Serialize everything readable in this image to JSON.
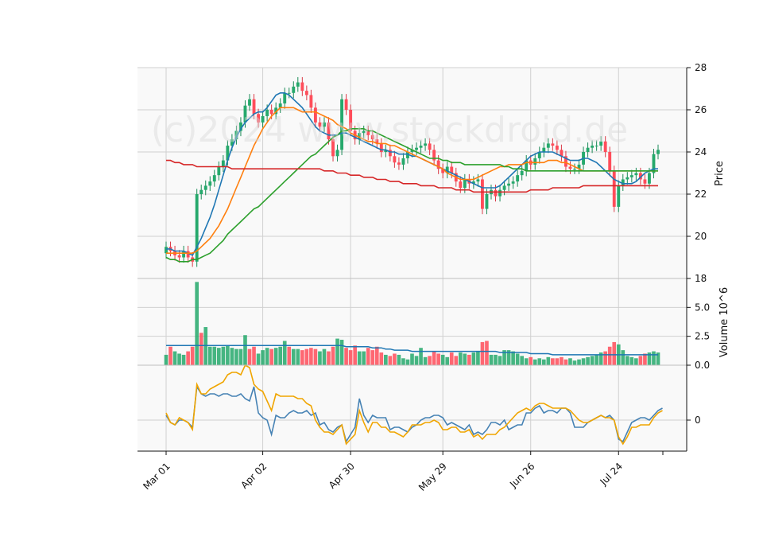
{
  "chart_data": {
    "type": "candlestick",
    "watermark": "(c)2024 www.stockdroid.de",
    "x_tick_labels": [
      "Mar 01",
      "Apr 02",
      "Apr 30",
      "May 29",
      "Jun 26",
      "Jul 24"
    ],
    "x_tick_indices": [
      0,
      22,
      42,
      63,
      83,
      103
    ],
    "price_panel": {
      "ylabel": "Price",
      "ylim": [
        18,
        28
      ],
      "yticks": [
        18,
        20,
        22,
        24,
        26,
        28
      ],
      "closes": [
        19.5,
        19.3,
        19.1,
        19.0,
        19.3,
        19.0,
        18.8,
        22.0,
        22.2,
        22.4,
        22.6,
        22.9,
        23.3,
        23.6,
        24.3,
        24.6,
        25.0,
        25.4,
        26.2,
        26.5,
        25.8,
        25.4,
        25.7,
        26.0,
        25.8,
        26.1,
        26.3,
        26.8,
        26.8,
        27.1,
        27.3,
        26.9,
        26.7,
        26.1,
        25.4,
        25.2,
        25.4,
        24.6,
        23.8,
        24.1,
        26.5,
        26.0,
        25.0,
        24.6,
        24.9,
        25.0,
        24.8,
        24.6,
        24.4,
        24.0,
        24.1,
        23.8,
        23.5,
        23.4,
        23.7,
        24.0,
        24.1,
        24.2,
        24.3,
        24.4,
        24.1,
        23.6,
        23.2,
        23.0,
        23.3,
        23.0,
        22.6,
        22.3,
        22.7,
        22.5,
        22.6,
        22.7,
        21.3,
        22.0,
        22.2,
        21.9,
        22.2,
        22.4,
        22.5,
        22.6,
        22.9,
        23.1,
        23.6,
        23.4,
        23.7,
        24.0,
        24.2,
        24.4,
        24.3,
        24.1,
        23.8,
        23.3,
        23.2,
        23.2,
        23.4,
        24.0,
        24.2,
        24.3,
        24.3,
        24.5,
        24.0,
        23.1,
        21.4,
        22.4,
        22.7,
        22.8,
        22.9,
        23.0,
        22.7,
        22.5,
        23.0,
        23.9,
        24.1
      ],
      "ma_series": [
        {
          "color": "#1f77b4",
          "values": [
            19.4,
            19.4,
            19.3,
            19.3,
            19.3,
            19.2,
            19.1,
            19.5,
            19.9,
            20.4,
            20.9,
            21.5,
            22.2,
            22.9,
            23.6,
            24.2,
            24.7,
            25.1,
            25.4,
            25.6,
            25.8,
            25.9,
            25.9,
            26.1,
            26.4,
            26.7,
            26.8,
            26.8,
            26.7,
            26.5,
            26.3,
            26.1,
            25.8,
            25.5,
            25.2,
            25.0,
            24.9,
            24.8,
            24.8,
            24.8,
            24.9,
            24.9,
            24.8,
            24.7,
            24.6,
            24.5,
            24.4,
            24.3,
            24.2,
            24.1,
            24.1,
            24.0,
            24.0,
            23.9,
            23.9,
            23.9,
            23.8,
            23.8,
            23.7,
            23.6,
            23.5,
            23.4,
            23.3,
            23.2,
            23.1,
            23.0,
            22.9,
            22.8,
            22.7,
            22.6,
            22.5,
            22.4,
            22.3,
            22.3,
            22.3,
            22.3,
            22.4,
            22.6,
            22.8,
            23.0,
            23.2,
            23.4,
            23.6,
            23.8,
            23.9,
            24.0,
            24.0,
            24.0,
            24.0,
            23.9,
            23.8,
            23.7,
            23.6,
            23.6,
            23.6,
            23.7,
            23.7,
            23.6,
            23.5,
            23.3,
            23.1,
            22.9,
            22.7,
            22.6,
            22.5,
            22.5,
            22.5,
            22.6,
            22.8,
            23.0,
            23.1,
            23.2,
            23.2
          ]
        },
        {
          "color": "#ff7f0e",
          "values": [
            19.2,
            19.2,
            19.2,
            19.2,
            19.2,
            19.2,
            19.2,
            19.3,
            19.5,
            19.7,
            19.9,
            20.2,
            20.5,
            20.9,
            21.3,
            21.8,
            22.3,
            22.8,
            23.3,
            23.8,
            24.3,
            24.7,
            25.1,
            25.4,
            25.7,
            25.9,
            26.1,
            26.1,
            26.1,
            26.1,
            26.0,
            25.9,
            25.9,
            25.9,
            25.9,
            25.8,
            25.7,
            25.6,
            25.5,
            25.3,
            25.2,
            25.1,
            24.9,
            24.8,
            24.7,
            24.6,
            24.5,
            24.5,
            24.4,
            24.4,
            24.4,
            24.3,
            24.3,
            24.2,
            24.1,
            24.0,
            23.9,
            23.8,
            23.7,
            23.6,
            23.5,
            23.4,
            23.3,
            23.2,
            23.0,
            22.9,
            22.8,
            22.7,
            22.7,
            22.7,
            22.7,
            22.8,
            22.9,
            23.0,
            23.1,
            23.2,
            23.3,
            23.3,
            23.4,
            23.4,
            23.4,
            23.4,
            23.5,
            23.5,
            23.5,
            23.5,
            23.5,
            23.6,
            23.6,
            23.6,
            23.5,
            23.5,
            23.4,
            23.3,
            23.2,
            23.1,
            23.1,
            23.1,
            23.1,
            23.1,
            23.1,
            23.1,
            23.1,
            23.1,
            23.1,
            23.1,
            23.1,
            23.1,
            23.1,
            23.1,
            23.1,
            23.1,
            23.1
          ]
        },
        {
          "color": "#2ca02c",
          "values": [
            19.0,
            18.9,
            18.9,
            18.8,
            18.8,
            18.8,
            18.9,
            18.9,
            19.0,
            19.1,
            19.2,
            19.4,
            19.6,
            19.8,
            20.1,
            20.3,
            20.5,
            20.7,
            20.9,
            21.1,
            21.3,
            21.4,
            21.6,
            21.8,
            22.0,
            22.2,
            22.4,
            22.6,
            22.8,
            23.0,
            23.2,
            23.4,
            23.6,
            23.8,
            23.9,
            24.1,
            24.3,
            24.5,
            24.7,
            24.8,
            25.0,
            25.0,
            25.1,
            25.1,
            25.1,
            25.1,
            25.0,
            25.0,
            24.9,
            24.8,
            24.7,
            24.6,
            24.5,
            24.4,
            24.3,
            24.2,
            24.1,
            24.0,
            23.9,
            23.8,
            23.7,
            23.7,
            23.7,
            23.6,
            23.6,
            23.5,
            23.5,
            23.5,
            23.4,
            23.4,
            23.4,
            23.4,
            23.4,
            23.4,
            23.4,
            23.4,
            23.4,
            23.3,
            23.3,
            23.2,
            23.2,
            23.2,
            23.1,
            23.1,
            23.1,
            23.1,
            23.1,
            23.1,
            23.1,
            23.1,
            23.1,
            23.1,
            23.1,
            23.1,
            23.1,
            23.1,
            23.1,
            23.1,
            23.1,
            23.1,
            23.1,
            23.1,
            23.1,
            23.1,
            23.1,
            23.1,
            23.1,
            23.1,
            23.1,
            23.1,
            23.1,
            23.1,
            23.1
          ]
        },
        {
          "color": "#d62728",
          "values": [
            23.6,
            23.6,
            23.5,
            23.5,
            23.4,
            23.4,
            23.4,
            23.3,
            23.3,
            23.3,
            23.3,
            23.3,
            23.3,
            23.3,
            23.3,
            23.2,
            23.2,
            23.2,
            23.2,
            23.2,
            23.2,
            23.2,
            23.2,
            23.2,
            23.2,
            23.2,
            23.2,
            23.2,
            23.2,
            23.2,
            23.2,
            23.2,
            23.2,
            23.2,
            23.2,
            23.2,
            23.1,
            23.1,
            23.1,
            23.0,
            23.0,
            23.0,
            22.9,
            22.9,
            22.9,
            22.8,
            22.8,
            22.8,
            22.7,
            22.7,
            22.7,
            22.6,
            22.6,
            22.6,
            22.5,
            22.5,
            22.5,
            22.5,
            22.4,
            22.4,
            22.4,
            22.4,
            22.3,
            22.3,
            22.3,
            22.3,
            22.2,
            22.2,
            22.2,
            22.2,
            22.1,
            22.1,
            22.1,
            22.1,
            22.1,
            22.1,
            22.1,
            22.1,
            22.1,
            22.1,
            22.1,
            22.1,
            22.1,
            22.2,
            22.2,
            22.2,
            22.2,
            22.2,
            22.3,
            22.3,
            22.3,
            22.3,
            22.3,
            22.3,
            22.3,
            22.4,
            22.4,
            22.4,
            22.4,
            22.4,
            22.4,
            22.4,
            22.4,
            22.4,
            22.4,
            22.4,
            22.4,
            22.4,
            22.4,
            22.4,
            22.4,
            22.4,
            22.4
          ]
        }
      ]
    },
    "volume_panel": {
      "ylabel": "Volume  10^6",
      "yticks": [
        0,
        2.5,
        5.0
      ],
      "ytick_labels": [
        "0.0",
        "2.5",
        "5.0"
      ],
      "ylim": [
        0,
        7.5
      ],
      "up_color": "#26a96c",
      "down_color": "#ff4d5a",
      "volumes": [
        0.9,
        1.6,
        1.2,
        1.0,
        0.9,
        1.2,
        1.6,
        7.2,
        2.8,
        3.3,
        1.6,
        1.6,
        1.5,
        1.6,
        1.7,
        1.5,
        1.4,
        1.4,
        2.6,
        1.4,
        1.6,
        1.0,
        1.3,
        1.5,
        1.4,
        1.5,
        1.6,
        2.1,
        1.6,
        1.4,
        1.4,
        1.3,
        1.4,
        1.5,
        1.4,
        1.2,
        1.4,
        1.2,
        1.6,
        2.3,
        2.2,
        1.5,
        1.3,
        1.7,
        1.2,
        1.2,
        1.5,
        1.3,
        1.6,
        1.1,
        0.9,
        0.8,
        1.0,
        0.9,
        0.6,
        0.5,
        1.0,
        0.8,
        1.5,
        0.7,
        0.8,
        1.2,
        1.0,
        0.9,
        0.7,
        1.1,
        0.8,
        1.1,
        1.0,
        0.9,
        1.1,
        1.2,
        2.0,
        2.1,
        0.9,
        0.9,
        0.8,
        1.3,
        1.3,
        1.2,
        1.0,
        0.8,
        0.6,
        0.7,
        0.5,
        0.6,
        0.5,
        0.7,
        0.6,
        0.6,
        0.7,
        0.5,
        0.6,
        0.4,
        0.5,
        0.6,
        0.7,
        0.8,
        0.9,
        1.1,
        1.2,
        1.6,
        2.0,
        1.8,
        1.3,
        0.8,
        0.7,
        0.6,
        0.8,
        1.0,
        1.1,
        1.2,
        1.1
      ],
      "up_flags": [
        1,
        0,
        1,
        1,
        1,
        0,
        0,
        1,
        0,
        1,
        1,
        1,
        1,
        1,
        1,
        1,
        1,
        1,
        1,
        0,
        0,
        1,
        1,
        1,
        0,
        1,
        1,
        1,
        0,
        1,
        1,
        0,
        0,
        0,
        0,
        1,
        1,
        0,
        0,
        1,
        1,
        0,
        0,
        0,
        1,
        1,
        0,
        0,
        0,
        0,
        1,
        0,
        0,
        1,
        1,
        1,
        1,
        1,
        1,
        1,
        0,
        0,
        0,
        1,
        1,
        0,
        0,
        1,
        1,
        0,
        1,
        1,
        0,
        0,
        1,
        1,
        1,
        1,
        1,
        1,
        1,
        1,
        1,
        0,
        1,
        1,
        1,
        1,
        0,
        0,
        0,
        0,
        1,
        1,
        1,
        1,
        1,
        1,
        1,
        1,
        0,
        0,
        0,
        1,
        1,
        1,
        1,
        1,
        0,
        0,
        1,
        1,
        1
      ],
      "avg_line": {
        "color": "#1f77b4",
        "values": [
          1.7,
          1.7,
          1.7,
          1.7,
          1.7,
          1.7,
          1.7,
          1.7,
          1.7,
          1.7,
          1.7,
          1.7,
          1.7,
          1.7,
          1.7,
          1.7,
          1.7,
          1.7,
          1.7,
          1.7,
          1.7,
          1.7,
          1.7,
          1.7,
          1.7,
          1.7,
          1.7,
          1.7,
          1.7,
          1.7,
          1.7,
          1.7,
          1.7,
          1.7,
          1.7,
          1.7,
          1.7,
          1.7,
          1.7,
          1.7,
          1.7,
          1.6,
          1.6,
          1.6,
          1.6,
          1.6,
          1.6,
          1.5,
          1.5,
          1.5,
          1.4,
          1.4,
          1.3,
          1.3,
          1.3,
          1.3,
          1.2,
          1.2,
          1.2,
          1.2,
          1.2,
          1.2,
          1.2,
          1.2,
          1.2,
          1.2,
          1.2,
          1.2,
          1.2,
          1.2,
          1.2,
          1.2,
          1.2,
          1.2,
          1.2,
          1.2,
          1.1,
          1.1,
          1.1,
          1.1,
          1.1,
          1.1,
          1.1,
          1.0,
          1.0,
          1.0,
          1.0,
          1.0,
          0.9,
          0.9,
          0.9,
          0.9,
          0.9,
          0.9,
          0.9,
          0.9,
          0.9,
          0.9,
          0.9,
          0.9,
          0.9,
          0.9,
          0.9,
          0.9,
          0.9,
          0.9,
          0.9,
          0.9,
          0.9,
          0.9,
          0.9,
          0.9,
          0.9
        ]
      }
    },
    "indicator_panel": {
      "ylim": [
        -1.3,
        2.3
      ],
      "yticks": [
        0
      ],
      "ytick_labels": [
        "0"
      ],
      "series": [
        {
          "color": "#4682b4",
          "values": [
            0.2,
            -0.1,
            -0.2,
            0.0,
            0.0,
            -0.1,
            -0.3,
            1.4,
            1.1,
            1.0,
            1.1,
            1.1,
            1.0,
            1.1,
            1.1,
            1.0,
            1.0,
            1.1,
            0.9,
            0.8,
            1.4,
            0.3,
            0.1,
            0.0,
            -0.6,
            0.2,
            0.1,
            0.1,
            0.3,
            0.4,
            0.3,
            0.3,
            0.4,
            0.2,
            0.3,
            -0.2,
            -0.1,
            -0.4,
            -0.5,
            -0.3,
            -0.2,
            -0.9,
            -0.6,
            -0.3,
            0.9,
            0.2,
            -0.1,
            0.2,
            0.1,
            0.1,
            0.1,
            -0.4,
            -0.3,
            -0.3,
            -0.4,
            -0.5,
            -0.3,
            -0.2,
            0.0,
            0.1,
            0.1,
            0.2,
            0.2,
            0.1,
            -0.2,
            -0.1,
            -0.2,
            -0.3,
            -0.4,
            -0.2,
            -0.6,
            -0.5,
            -0.6,
            -0.4,
            -0.1,
            -0.1,
            -0.2,
            0.0,
            -0.4,
            -0.3,
            -0.2,
            -0.2,
            0.3,
            0.3,
            0.5,
            0.6,
            0.3,
            0.4,
            0.4,
            0.3,
            0.5,
            0.5,
            0.3,
            -0.3,
            -0.3,
            -0.3,
            -0.1,
            0.0,
            0.1,
            0.2,
            0.1,
            0.2,
            0.0,
            -0.8,
            -0.9,
            -0.5,
            -0.1,
            0.0,
            0.1,
            0.1,
            0.0,
            0.2,
            0.4,
            0.5
          ]
        },
        {
          "color": "#f0a500",
          "values": [
            0.3,
            -0.1,
            -0.2,
            0.1,
            0.0,
            -0.1,
            -0.4,
            1.5,
            1.1,
            1.1,
            1.3,
            1.4,
            1.5,
            1.6,
            1.9,
            2.0,
            2.0,
            1.9,
            2.3,
            2.2,
            1.5,
            1.3,
            1.2,
            0.8,
            0.4,
            1.1,
            1.0,
            1.0,
            1.0,
            1.0,
            0.9,
            0.9,
            0.7,
            0.6,
            0.0,
            -0.3,
            -0.5,
            -0.5,
            -0.6,
            -0.4,
            -0.2,
            -1.0,
            -0.8,
            -0.6,
            0.4,
            -0.1,
            -0.5,
            -0.1,
            -0.1,
            -0.3,
            -0.3,
            -0.5,
            -0.5,
            -0.6,
            -0.7,
            -0.5,
            -0.2,
            -0.2,
            -0.2,
            -0.1,
            -0.1,
            0.0,
            -0.1,
            -0.4,
            -0.4,
            -0.3,
            -0.3,
            -0.5,
            -0.5,
            -0.4,
            -0.7,
            -0.6,
            -0.8,
            -0.6,
            -0.6,
            -0.6,
            -0.4,
            -0.3,
            -0.1,
            0.1,
            0.3,
            0.4,
            0.5,
            0.4,
            0.6,
            0.7,
            0.7,
            0.6,
            0.5,
            0.5,
            0.5,
            0.5,
            0.4,
            0.2,
            0.0,
            -0.1,
            -0.1,
            0.0,
            0.1,
            0.2,
            0.1,
            0.1,
            0.0,
            -0.7,
            -1.0,
            -0.7,
            -0.3,
            -0.3,
            -0.2,
            -0.2,
            -0.2,
            0.1,
            0.3,
            0.4
          ]
        }
      ]
    }
  }
}
